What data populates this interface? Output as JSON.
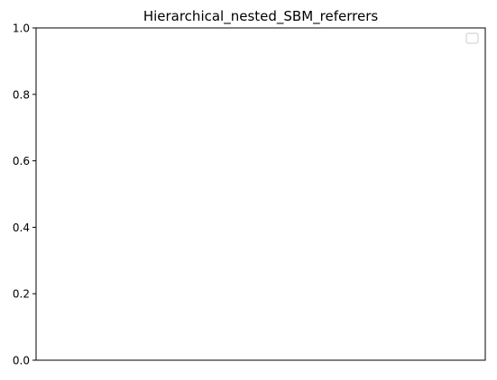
{
  "chart_data": {
    "type": "line",
    "title": "Hierarchical_nested_SBM_referrers",
    "xlabel": "",
    "ylabel": "",
    "ylim": [
      0.0,
      1.0
    ],
    "y_ticks": [
      0.0,
      0.2,
      0.4,
      0.6,
      0.8,
      1.0
    ],
    "y_tick_labels": [
      "0.0",
      "0.2",
      "0.4",
      "0.6",
      "0.8",
      "1.0"
    ],
    "x_ticks": [],
    "series": [],
    "grid": false,
    "legend": {
      "placement": "upper-right",
      "entries": []
    }
  }
}
